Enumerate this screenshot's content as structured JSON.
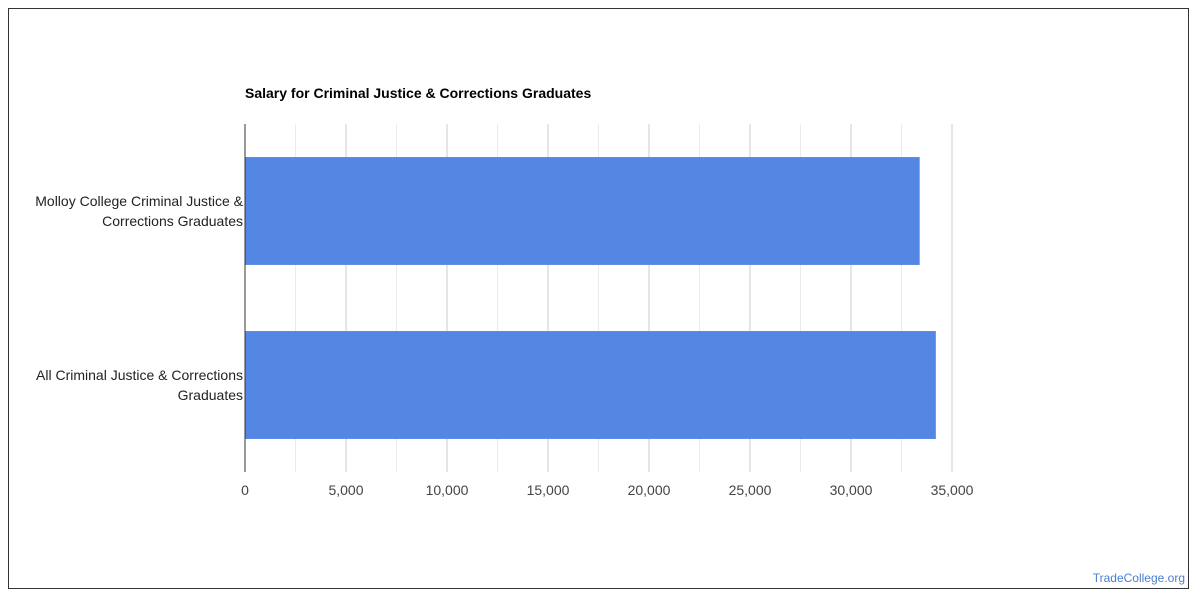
{
  "chart_data": {
    "type": "bar",
    "orientation": "horizontal",
    "title": "Salary for Criminal Justice & Corrections Graduates",
    "categories": [
      [
        "Molloy College Criminal Justice &",
        "Corrections Graduates"
      ],
      [
        "All Criminal Justice & Corrections",
        "Graduates"
      ]
    ],
    "values": [
      33400,
      34200
    ],
    "xlim": [
      0,
      35000
    ],
    "xticks": [
      "0",
      "5,000",
      "10,000",
      "15,000",
      "20,000",
      "25,000",
      "30,000",
      "35,000"
    ],
    "grid": true,
    "bar_color": "#5387e3"
  },
  "source": "TradeCollege.org"
}
